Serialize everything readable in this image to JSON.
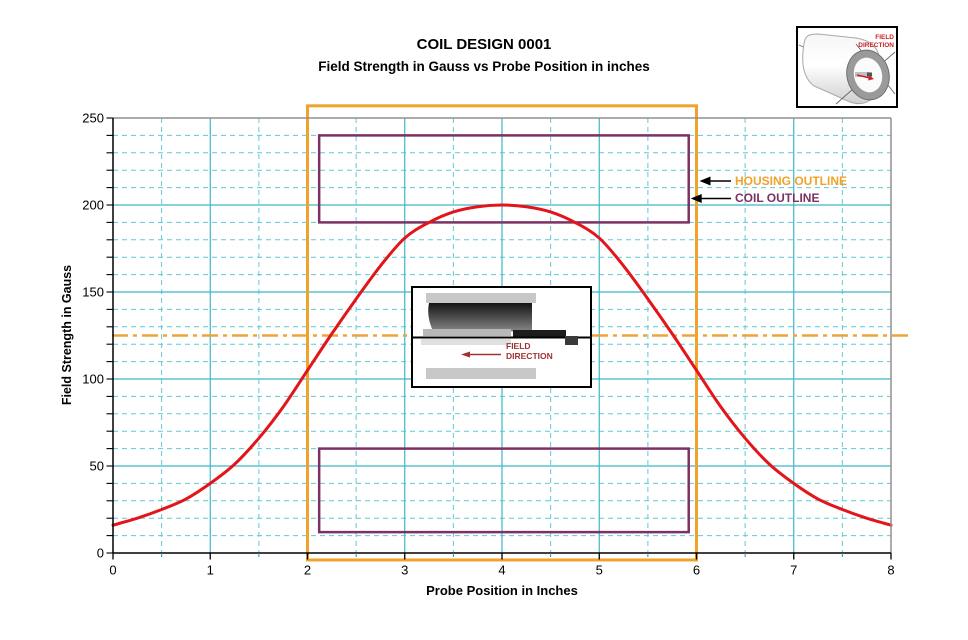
{
  "header": {
    "title": "COIL DESIGN 0001",
    "subtitle": "Field Strength in Gauss vs Probe Position in inches"
  },
  "chart_data": {
    "type": "line",
    "title": "COIL DESIGN 0001",
    "subtitle": "Field Strength in Gauss vs Probe Position in inches",
    "xlabel": "Probe Position in Inches",
    "ylabel": "Field Strength in Gauss",
    "xlim": [
      0,
      8
    ],
    "ylim": [
      0,
      250
    ],
    "x_ticks": [
      0,
      1,
      2,
      3,
      4,
      5,
      6,
      7,
      8
    ],
    "y_ticks": [
      0,
      50,
      100,
      150,
      200,
      250
    ],
    "x_minor_step": 0.5,
    "y_minor_step": 10,
    "grid": "on",
    "legend": "none",
    "colors": {
      "grid_major": "#3cb8c8",
      "grid_minor": "#5fc9d6",
      "border_gray": "#909090",
      "axis_black": "#000000"
    },
    "series": [
      {
        "name": "field-strength-curve",
        "color": "#e3141a",
        "x": [
          0,
          0.25,
          0.5,
          0.75,
          1,
          1.25,
          1.5,
          1.75,
          2,
          2.25,
          2.5,
          2.75,
          3,
          3.25,
          3.5,
          3.75,
          4,
          4.25,
          4.5,
          4.75,
          5,
          5.25,
          5.5,
          5.75,
          6,
          6.25,
          6.5,
          6.75,
          7,
          7.25,
          7.5,
          7.75,
          8
        ],
        "y": [
          16,
          20,
          25,
          31,
          40,
          51,
          66,
          84,
          105,
          126,
          146,
          165,
          181,
          190,
          196,
          199,
          200,
          199,
          196,
          190,
          181,
          165,
          146,
          126,
          105,
          84,
          66,
          51,
          40,
          31,
          25,
          20,
          16
        ]
      }
    ],
    "reference_line": {
      "value": 125,
      "color": "#eda43c",
      "style": "dash-dot"
    },
    "housing_outline": {
      "label": "HOUSING OUTLINE",
      "color": "#f0a32a",
      "x1": 2,
      "x2": 6,
      "y1": -4,
      "y2": 257
    },
    "coil_outline": {
      "label": "COIL OUTLINE",
      "color": "#7c3164",
      "x1": 2.12,
      "x2": 5.92,
      "rects": [
        [
          190,
          240
        ],
        [
          12,
          60
        ]
      ]
    }
  },
  "insets": {
    "cross_section": {
      "label_line1": "FIELD",
      "label_line2": "DIRECTION",
      "text_color": "#a03333"
    },
    "coil_3d": {
      "label_line1": "FIELD",
      "label_line2": "DIRECTION",
      "text_color": "#cc2222"
    }
  }
}
